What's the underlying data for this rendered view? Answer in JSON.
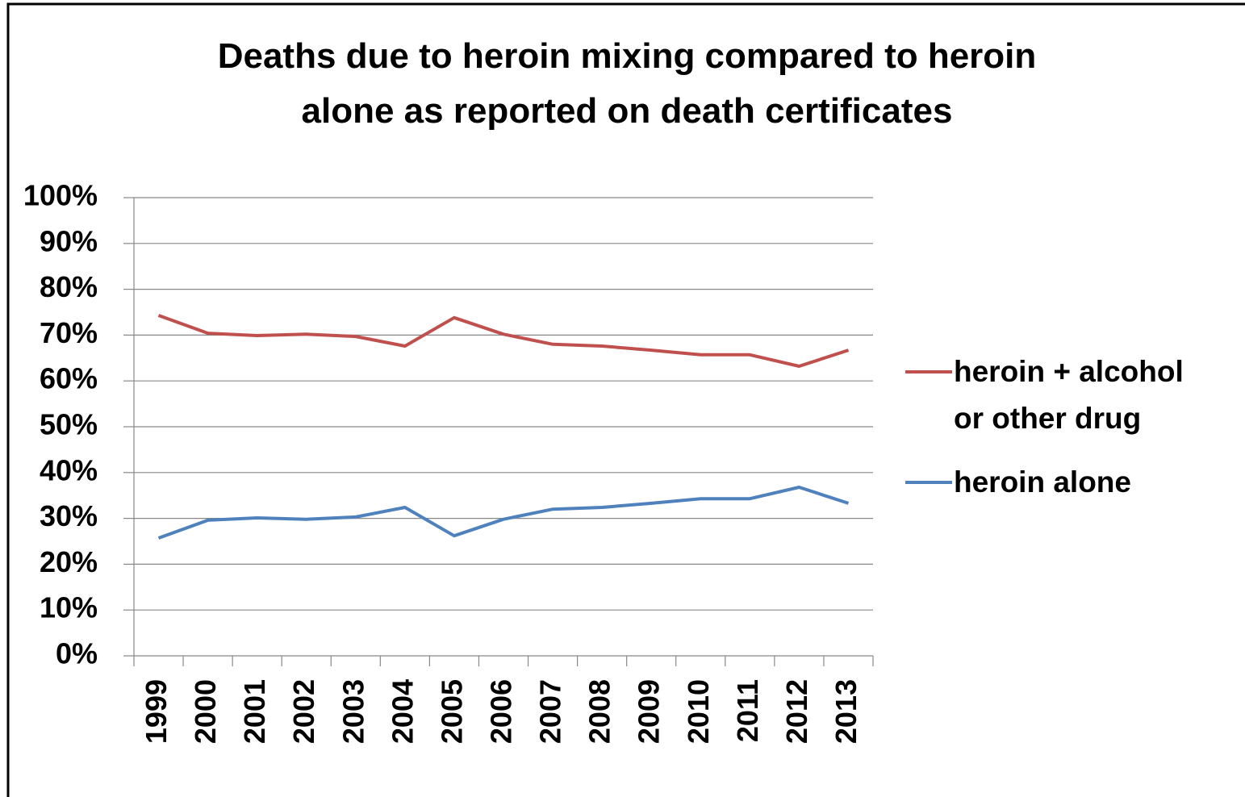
{
  "chart_data": {
    "type": "line",
    "title": "Deaths due to heroin mixing compared to heroin alone as reported on death certificates",
    "categories": [
      "1999",
      "2000",
      "2001",
      "2002",
      "2003",
      "2004",
      "2005",
      "2006",
      "2007",
      "2008",
      "2009",
      "2010",
      "2011",
      "2012",
      "2013"
    ],
    "series": [
      {
        "name": "heroin + alcohol or other drug",
        "color": "#c0504d",
        "values": [
          74.3,
          70.4,
          69.9,
          70.2,
          69.7,
          67.6,
          73.8,
          70.2,
          68,
          67.6,
          66.7,
          65.7,
          65.7,
          63.2,
          66.7
        ]
      },
      {
        "name": "heroin alone",
        "color": "#4f81bd",
        "values": [
          25.7,
          29.6,
          30.1,
          29.8,
          30.3,
          32.4,
          26.2,
          29.8,
          32,
          32.4,
          33.3,
          34.3,
          34.3,
          36.8,
          33.3
        ]
      }
    ],
    "ylim": [
      0,
      100
    ],
    "yticks": [
      {
        "value": 0,
        "label": "0%"
      },
      {
        "value": 10,
        "label": "10%"
      },
      {
        "value": 20,
        "label": "20%"
      },
      {
        "value": 30,
        "label": "30%"
      },
      {
        "value": 40,
        "label": "40%"
      },
      {
        "value": 50,
        "label": "50%"
      },
      {
        "value": 60,
        "label": "60%"
      },
      {
        "value": 70,
        "label": "70%"
      },
      {
        "value": 80,
        "label": "80%"
      },
      {
        "value": 90,
        "label": "90%"
      },
      {
        "value": 100,
        "label": "100%"
      }
    ],
    "grid": true,
    "legend": "right"
  }
}
